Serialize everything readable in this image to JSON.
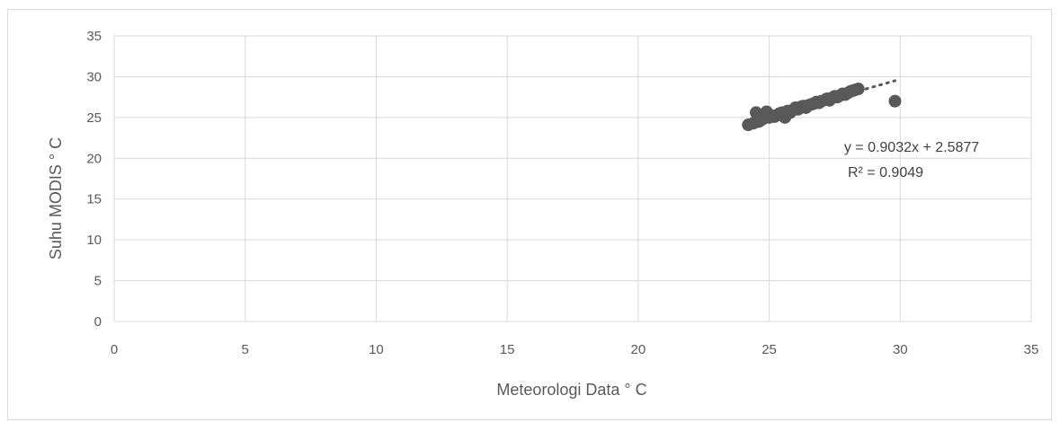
{
  "chart_data": {
    "type": "scatter",
    "title": "",
    "xlabel": "Meteorologi Data ° C",
    "ylabel": "Suhu MODIS ° C",
    "xlim": [
      0,
      35
    ],
    "ylim": [
      0,
      35
    ],
    "x_ticks": [
      0,
      5,
      10,
      15,
      20,
      25,
      30,
      35
    ],
    "y_ticks": [
      0,
      5,
      10,
      15,
      20,
      25,
      30,
      35
    ],
    "grid": true,
    "legend": "none",
    "colors": {
      "marker": "#595959",
      "grid": "#d9d9d9",
      "trendline": "#595959"
    },
    "series": [
      {
        "points": [
          [
            24.2,
            24.1
          ],
          [
            24.4,
            24.3
          ],
          [
            24.5,
            25.6
          ],
          [
            24.6,
            24.5
          ],
          [
            24.7,
            24.7
          ],
          [
            24.8,
            24.9
          ],
          [
            24.9,
            25.7
          ],
          [
            25.0,
            25.0
          ],
          [
            25.1,
            25.2
          ],
          [
            25.2,
            25.1
          ],
          [
            25.3,
            25.3
          ],
          [
            25.4,
            25.5
          ],
          [
            25.5,
            25.6
          ],
          [
            25.6,
            25.0
          ],
          [
            25.7,
            25.8
          ],
          [
            25.8,
            25.6
          ],
          [
            25.9,
            25.9
          ],
          [
            26.0,
            26.2
          ],
          [
            26.1,
            26.0
          ],
          [
            26.2,
            26.3
          ],
          [
            26.3,
            26.4
          ],
          [
            26.4,
            26.2
          ],
          [
            26.5,
            26.5
          ],
          [
            26.6,
            26.6
          ],
          [
            26.7,
            26.7
          ],
          [
            26.8,
            26.9
          ],
          [
            26.9,
            26.8
          ],
          [
            27.0,
            27.0
          ],
          [
            27.2,
            27.3
          ],
          [
            27.3,
            27.1
          ],
          [
            27.4,
            27.4
          ],
          [
            27.5,
            27.6
          ],
          [
            27.6,
            27.5
          ],
          [
            27.7,
            27.7
          ],
          [
            27.8,
            27.9
          ],
          [
            27.9,
            27.8
          ],
          [
            28.0,
            28.0
          ],
          [
            28.1,
            28.2
          ],
          [
            28.2,
            28.3
          ],
          [
            28.3,
            28.4
          ],
          [
            28.4,
            28.5
          ],
          [
            29.8,
            27.0
          ]
        ]
      }
    ],
    "trendline": {
      "slope": 0.9032,
      "intercept": 2.5877,
      "x_range": [
        24.2,
        29.8
      ],
      "style": "dotted"
    },
    "annotations": {
      "equation": "y = 0.9032x + 2.5877",
      "r_squared": "R² = 0.9049"
    }
  }
}
